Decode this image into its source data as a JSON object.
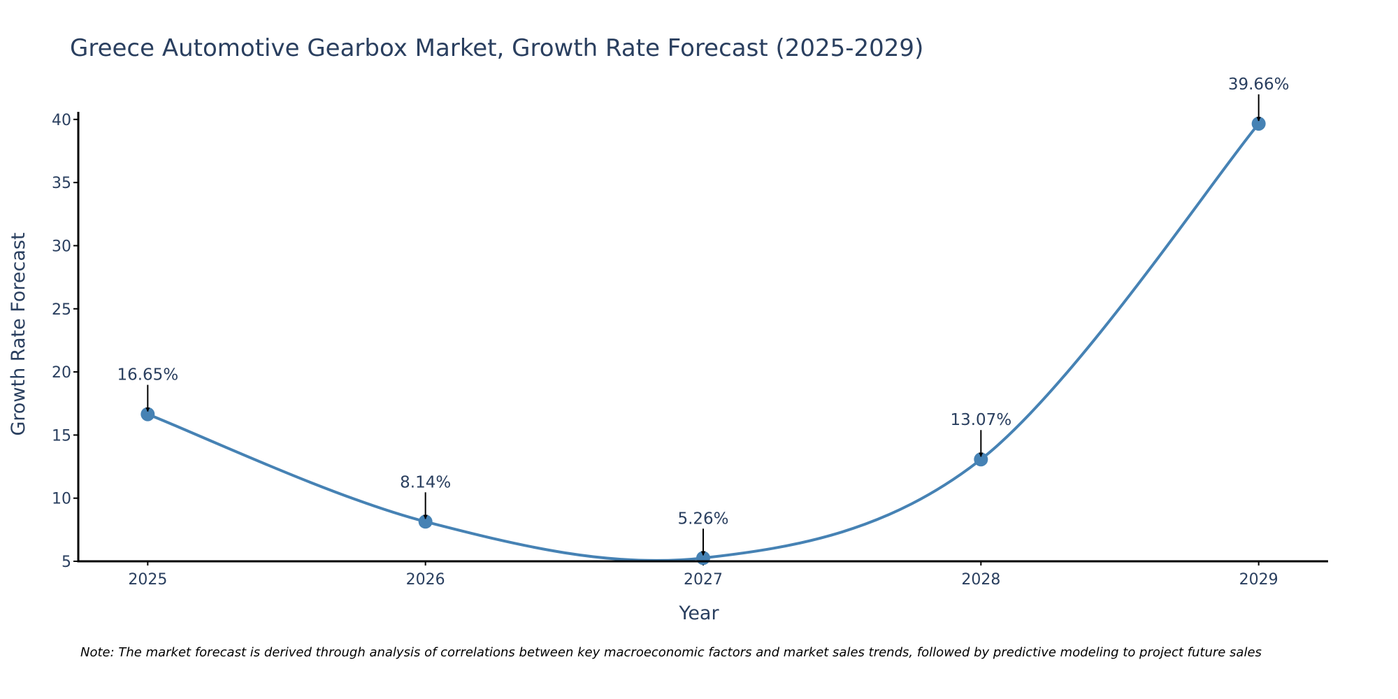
{
  "chart_data": {
    "type": "line",
    "title": "Greece Automotive Gearbox Market, Growth Rate Forecast (2025-2029)",
    "xlabel": "Year",
    "ylabel": "Growth Rate Forecast",
    "categories": [
      "2025",
      "2026",
      "2027",
      "2028",
      "2029"
    ],
    "x": [
      2025,
      2026,
      2027,
      2028,
      2029
    ],
    "values": [
      16.65,
      8.14,
      5.26,
      13.07,
      39.66
    ],
    "data_labels": [
      "16.65%",
      "8.14%",
      "5.26%",
      "13.07%",
      "39.66%"
    ],
    "yticks": [
      5,
      10,
      15,
      20,
      25,
      30,
      35,
      40
    ],
    "ytick_labels": [
      "5",
      "10",
      "15",
      "20",
      "25",
      "30",
      "35",
      "40"
    ],
    "xlim": [
      2024.75,
      2029.25
    ],
    "ylim": [
      5,
      40.6
    ],
    "grid": false,
    "line_shape": "spline",
    "colors": {
      "line": "#4682b4",
      "marker": "#4682b4",
      "axis": "#000000",
      "arrow": "#000000",
      "text": "#2a3f5f"
    },
    "note": "Note: The market forecast is derived through analysis of correlations between key macroeconomic factors and market sales trends, followed by predictive modeling to project future sales"
  }
}
